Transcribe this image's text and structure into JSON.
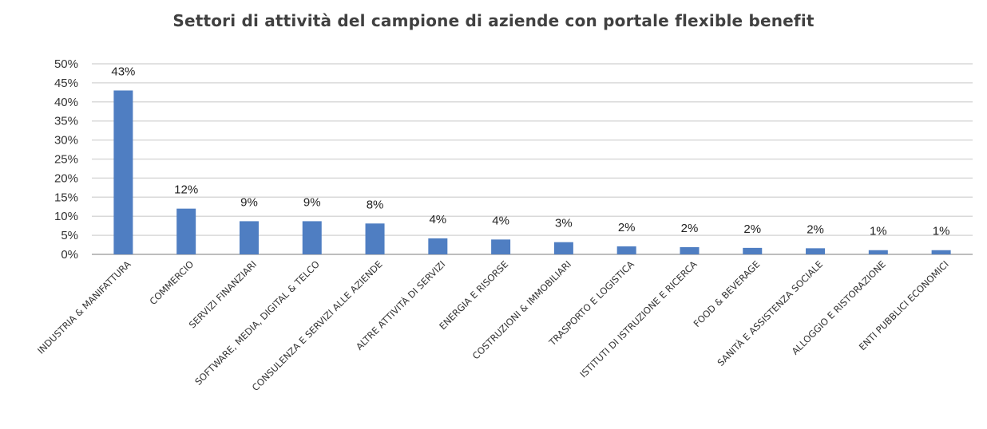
{
  "chart_data": {
    "type": "bar",
    "title": "Settori di attività del campione di aziende con portale flexible benefit",
    "xlabel": "",
    "ylabel": "",
    "ylim": [
      0,
      50
    ],
    "yticks": [
      "0%",
      "5%",
      "10%",
      "15%",
      "20%",
      "25%",
      "30%",
      "35%",
      "40%",
      "45%",
      "50%"
    ],
    "grid": true,
    "bar_color": "#4f7ec2",
    "categories": [
      "INDUSTRIA & MANIFATTURA",
      "COMMERCIO",
      "SERVIZI FINANZIARI",
      "SOFTWARE, MEDIA, DIGITAL & TELCO",
      "CONSULENZA E SERVIZI ALLE AZIENDE",
      "ALTRE ATTIVITÀ DI SERVIZI",
      "ENERGIA E RISORSE",
      "COSTRUZIONI & IMMOBILIARI",
      "TRASPORTO E LOGISTICA",
      "ISTITUTI DI ISTRUZIONE E RICERCA",
      "FOOD & BEVERAGE",
      "SANITÀ E ASSISTENZA SOCIALE",
      "ALLOGGIO E RISTORAZIONE",
      "ENTI PUBBLICI ECONOMICI"
    ],
    "values": [
      43.0,
      12.0,
      8.7,
      8.7,
      8.1,
      4.2,
      3.9,
      3.2,
      2.1,
      1.9,
      1.7,
      1.6,
      1.1,
      1.1
    ],
    "data_labels": [
      "43%",
      "12%",
      "9%",
      "9%",
      "8%",
      "4%",
      "4%",
      "3%",
      "2%",
      "2%",
      "2%",
      "2%",
      "1%",
      "1%"
    ]
  }
}
